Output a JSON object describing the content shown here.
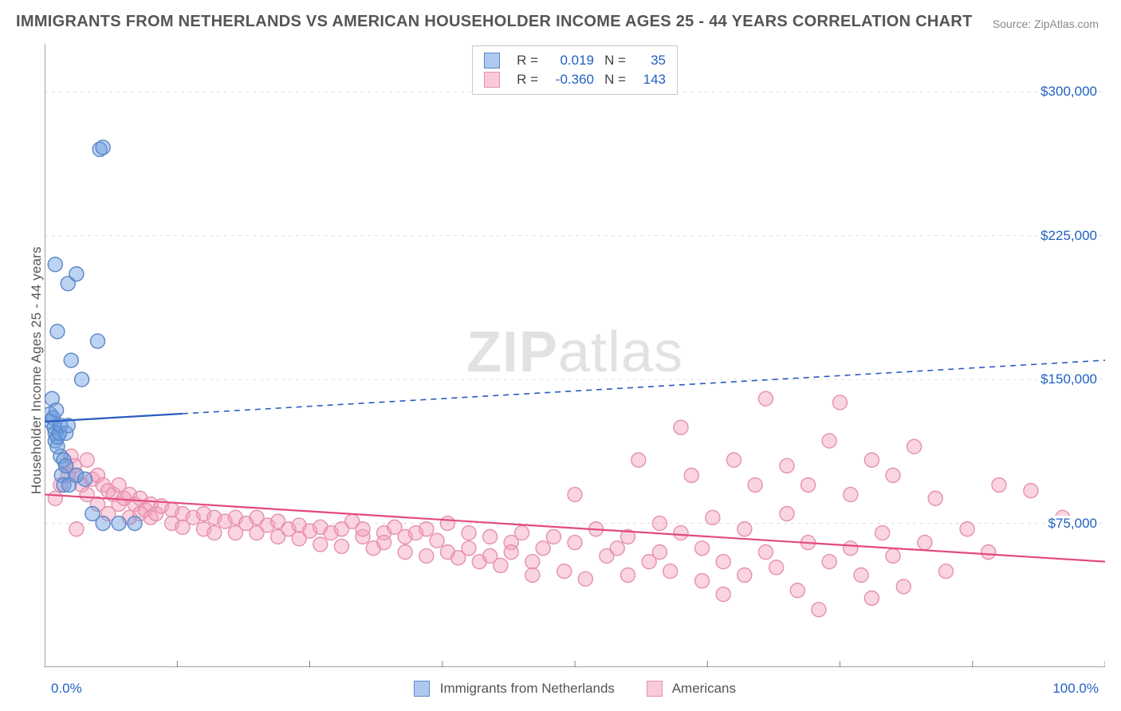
{
  "title": "IMMIGRANTS FROM NETHERLANDS VS AMERICAN HOUSEHOLDER INCOME AGES 25 - 44 YEARS CORRELATION CHART",
  "source_label": "Source: ZipAtlas.com",
  "ylabel": "Householder Income Ages 25 - 44 years",
  "watermark_zip": "ZIP",
  "watermark_atlas": "atlas",
  "chart": {
    "type": "scatter",
    "background_color": "#ffffff",
    "grid_color": "#dddddd",
    "grid_dash": "4,5",
    "axis_color": "#444444",
    "tick_color": "#888888",
    "label_fontsize": 17,
    "title_fontsize": 20,
    "title_color": "#555555",
    "xlim": [
      0,
      100
    ],
    "ylim": [
      0,
      325000
    ],
    "x_ticks": [
      0,
      12.5,
      25,
      37.5,
      50,
      62.5,
      75,
      87.5,
      100
    ],
    "y_ticks": [
      75000,
      150000,
      225000,
      300000
    ],
    "y_tick_labels": [
      "$75,000",
      "$150,000",
      "$225,000",
      "$300,000"
    ],
    "x_min_label": "0.0%",
    "x_max_label": "100.0%",
    "marker_radius": 9,
    "marker_stroke_width": 1.4,
    "line_width": 2.2,
    "series": [
      {
        "name": "Immigrants from Netherlands",
        "fill_color": "rgba(106,158,224,0.45)",
        "stroke_color": "#5a86c8",
        "line_color": "#2a5bbf",
        "R": "0.019",
        "N": "35",
        "trend": {
          "y_at_x0": 128000,
          "y_at_x100": 160000,
          "solid_until_x": 13
        },
        "points": [
          [
            0.5,
            132000
          ],
          [
            0.6,
            128000
          ],
          [
            0.7,
            140000
          ],
          [
            0.8,
            130000
          ],
          [
            0.9,
            125000
          ],
          [
            1.0,
            122000
          ],
          [
            1.0,
            118000
          ],
          [
            1.1,
            134000
          ],
          [
            1.2,
            115000
          ],
          [
            1.2,
            120000
          ],
          [
            1.4,
            122000
          ],
          [
            1.5,
            110000
          ],
          [
            1.5,
            126000
          ],
          [
            1.6,
            100000
          ],
          [
            1.8,
            95000
          ],
          [
            1.8,
            108000
          ],
          [
            2.0,
            122000
          ],
          [
            2.0,
            105000
          ],
          [
            2.2,
            126000
          ],
          [
            2.3,
            95000
          ],
          [
            2.5,
            160000
          ],
          [
            2.2,
            200000
          ],
          [
            3.0,
            205000
          ],
          [
            3.0,
            100000
          ],
          [
            3.5,
            150000
          ],
          [
            3.8,
            98000
          ],
          [
            5.0,
            170000
          ],
          [
            5.2,
            270000
          ],
          [
            5.5,
            271000
          ],
          [
            1.2,
            175000
          ],
          [
            1.0,
            210000
          ],
          [
            5.5,
            75000
          ],
          [
            7.0,
            75000
          ],
          [
            8.5,
            75000
          ],
          [
            4.5,
            80000
          ]
        ]
      },
      {
        "name": "Americans",
        "fill_color": "rgba(244,160,188,0.45)",
        "stroke_color": "#e590ad",
        "line_color": "#e34a7d",
        "R": "-0.360",
        "N": "143",
        "trend": {
          "y_at_x0": 90000,
          "y_at_x100": 55000,
          "solid_until_x": 100
        },
        "points": [
          [
            1,
            88000
          ],
          [
            1.5,
            95000
          ],
          [
            2,
            105000
          ],
          [
            2.2,
            100000
          ],
          [
            2.5,
            110000
          ],
          [
            2.8,
            105000
          ],
          [
            3,
            100000
          ],
          [
            3,
            72000
          ],
          [
            3.5,
            95000
          ],
          [
            4,
            108000
          ],
          [
            4,
            90000
          ],
          [
            4.5,
            98000
          ],
          [
            5,
            100000
          ],
          [
            5,
            85000
          ],
          [
            5.5,
            95000
          ],
          [
            6,
            92000
          ],
          [
            6,
            80000
          ],
          [
            6.5,
            90000
          ],
          [
            7,
            95000
          ],
          [
            7,
            85000
          ],
          [
            7.5,
            88000
          ],
          [
            8,
            90000
          ],
          [
            8,
            78000
          ],
          [
            8.5,
            85000
          ],
          [
            9,
            88000
          ],
          [
            9,
            80000
          ],
          [
            9.5,
            82000
          ],
          [
            10,
            85000
          ],
          [
            10,
            78000
          ],
          [
            10.5,
            80000
          ],
          [
            11,
            84000
          ],
          [
            12,
            82000
          ],
          [
            12,
            75000
          ],
          [
            13,
            80000
          ],
          [
            13,
            73000
          ],
          [
            14,
            78000
          ],
          [
            15,
            80000
          ],
          [
            15,
            72000
          ],
          [
            16,
            78000
          ],
          [
            16,
            70000
          ],
          [
            17,
            76000
          ],
          [
            18,
            78000
          ],
          [
            18,
            70000
          ],
          [
            19,
            75000
          ],
          [
            20,
            78000
          ],
          [
            20,
            70000
          ],
          [
            21,
            74000
          ],
          [
            22,
            76000
          ],
          [
            22,
            68000
          ],
          [
            23,
            72000
          ],
          [
            24,
            74000
          ],
          [
            24,
            67000
          ],
          [
            25,
            71000
          ],
          [
            26,
            73000
          ],
          [
            26,
            64000
          ],
          [
            27,
            70000
          ],
          [
            28,
            72000
          ],
          [
            28,
            63000
          ],
          [
            29,
            76000
          ],
          [
            30,
            68000
          ],
          [
            30,
            72000
          ],
          [
            31,
            62000
          ],
          [
            32,
            70000
          ],
          [
            32,
            65000
          ],
          [
            33,
            73000
          ],
          [
            34,
            60000
          ],
          [
            34,
            68000
          ],
          [
            35,
            70000
          ],
          [
            36,
            72000
          ],
          [
            36,
            58000
          ],
          [
            37,
            66000
          ],
          [
            38,
            75000
          ],
          [
            38,
            60000
          ],
          [
            39,
            57000
          ],
          [
            40,
            70000
          ],
          [
            40,
            62000
          ],
          [
            41,
            55000
          ],
          [
            42,
            68000
          ],
          [
            42,
            58000
          ],
          [
            43,
            53000
          ],
          [
            44,
            65000
          ],
          [
            44,
            60000
          ],
          [
            45,
            70000
          ],
          [
            46,
            55000
          ],
          [
            46,
            48000
          ],
          [
            47,
            62000
          ],
          [
            48,
            68000
          ],
          [
            49,
            50000
          ],
          [
            50,
            65000
          ],
          [
            50,
            90000
          ],
          [
            51,
            46000
          ],
          [
            52,
            72000
          ],
          [
            53,
            58000
          ],
          [
            54,
            62000
          ],
          [
            55,
            68000
          ],
          [
            55,
            48000
          ],
          [
            56,
            108000
          ],
          [
            57,
            55000
          ],
          [
            58,
            75000
          ],
          [
            58,
            60000
          ],
          [
            59,
            50000
          ],
          [
            60,
            125000
          ],
          [
            60,
            70000
          ],
          [
            61,
            100000
          ],
          [
            62,
            62000
          ],
          [
            62,
            45000
          ],
          [
            63,
            78000
          ],
          [
            64,
            55000
          ],
          [
            64,
            38000
          ],
          [
            65,
            108000
          ],
          [
            66,
            72000
          ],
          [
            66,
            48000
          ],
          [
            67,
            95000
          ],
          [
            68,
            140000
          ],
          [
            68,
            60000
          ],
          [
            69,
            52000
          ],
          [
            70,
            80000
          ],
          [
            70,
            105000
          ],
          [
            71,
            40000
          ],
          [
            72,
            95000
          ],
          [
            72,
            65000
          ],
          [
            73,
            30000
          ],
          [
            74,
            118000
          ],
          [
            74,
            55000
          ],
          [
            75,
            138000
          ],
          [
            76,
            62000
          ],
          [
            76,
            90000
          ],
          [
            77,
            48000
          ],
          [
            78,
            108000
          ],
          [
            78,
            36000
          ],
          [
            79,
            70000
          ],
          [
            80,
            100000
          ],
          [
            80,
            58000
          ],
          [
            81,
            42000
          ],
          [
            82,
            115000
          ],
          [
            83,
            65000
          ],
          [
            84,
            88000
          ],
          [
            85,
            50000
          ],
          [
            87,
            72000
          ],
          [
            89,
            60000
          ],
          [
            90,
            95000
          ],
          [
            93,
            92000
          ],
          [
            96,
            78000
          ]
        ]
      }
    ]
  },
  "bottom_legend": [
    {
      "swatch": "blue",
      "label": "Immigrants from Netherlands"
    },
    {
      "swatch": "pink",
      "label": "Americans"
    }
  ]
}
